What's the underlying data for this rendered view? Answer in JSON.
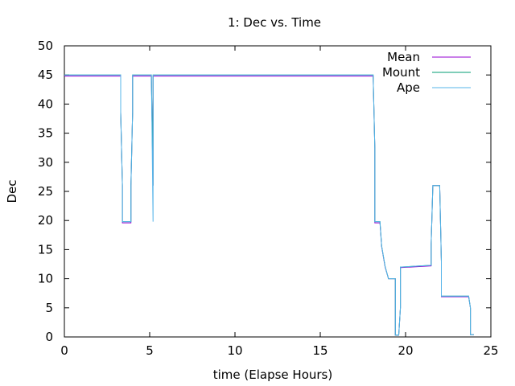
{
  "chart_data": {
    "type": "line",
    "title": "1: Dec vs. Time",
    "xlabel": "time (Elapse Hours)",
    "ylabel": "Dec",
    "xlim": [
      0,
      25
    ],
    "ylim": [
      0,
      50
    ],
    "xticks": [
      0,
      5,
      10,
      15,
      20,
      25
    ],
    "yticks": [
      0,
      5,
      10,
      15,
      20,
      25,
      30,
      35,
      40,
      45,
      50
    ],
    "grid": false,
    "legend_position": "top-right",
    "series": [
      {
        "name": "Mean",
        "color": "#9400d3",
        "x": [
          0.0,
          3.3,
          3.3,
          3.4,
          3.4,
          3.9,
          3.9,
          4.0,
          4.0,
          5.1,
          5.2,
          5.2,
          18.1,
          18.2,
          18.2,
          18.5,
          18.6,
          18.8,
          19.0,
          19.4,
          19.4,
          19.6,
          19.7,
          19.7,
          21.5,
          21.5,
          21.6,
          22.0,
          22.1,
          22.1,
          23.7,
          23.8,
          23.8,
          24.0
        ],
        "y": [
          44.8,
          44.8,
          38.6,
          26.0,
          19.6,
          19.6,
          26.0,
          38.6,
          44.8,
          44.8,
          26.0,
          44.8,
          44.8,
          32.4,
          19.6,
          19.6,
          15.5,
          12.0,
          10.0,
          10.0,
          0.3,
          0.3,
          5.0,
          11.9,
          12.2,
          16.0,
          26.0,
          26.0,
          13.0,
          6.9,
          6.9,
          5.0,
          0.4,
          0.4
        ]
      },
      {
        "name": "Mount",
        "color": "#009e73",
        "x": [
          0.0,
          3.3,
          3.3,
          3.4,
          3.4,
          3.9,
          3.9,
          4.0,
          4.0,
          5.1,
          5.2,
          5.2,
          18.1,
          18.2,
          18.2,
          18.5,
          18.6,
          18.8,
          19.0,
          19.4,
          19.4,
          19.6,
          19.7,
          19.7,
          21.5,
          21.5,
          21.6,
          22.0,
          22.1,
          22.1,
          23.7,
          23.8,
          23.8,
          24.0
        ],
        "y": [
          45.0,
          45.0,
          38.6,
          26.0,
          19.8,
          19.8,
          26.0,
          38.6,
          45.0,
          45.0,
          26.0,
          45.0,
          45.0,
          32.4,
          19.8,
          19.8,
          15.6,
          12.1,
          10.0,
          10.0,
          0.3,
          0.3,
          5.0,
          12.0,
          12.3,
          16.0,
          26.0,
          26.0,
          13.0,
          7.0,
          7.0,
          5.0,
          0.4,
          0.4
        ]
      },
      {
        "name": "Ape",
        "color": "#56b4e9",
        "x": [
          0.0,
          3.3,
          3.3,
          3.4,
          3.4,
          3.9,
          3.9,
          4.0,
          4.0,
          5.1,
          5.2,
          5.2,
          18.1,
          18.2,
          18.2,
          18.5,
          18.6,
          18.8,
          19.0,
          19.4,
          19.4,
          19.6,
          19.7,
          19.7,
          21.5,
          21.5,
          21.6,
          22.0,
          22.1,
          22.1,
          23.7,
          23.8,
          23.8,
          24.0
        ],
        "y": [
          45.0,
          45.0,
          38.6,
          26.0,
          19.8,
          19.8,
          26.0,
          38.6,
          45.0,
          45.0,
          19.8,
          45.0,
          45.0,
          32.4,
          19.8,
          19.8,
          15.6,
          12.1,
          10.0,
          10.0,
          0.3,
          0.3,
          5.0,
          12.0,
          12.3,
          16.0,
          26.0,
          26.0,
          13.0,
          7.0,
          7.0,
          5.0,
          0.4,
          0.4
        ]
      }
    ]
  }
}
